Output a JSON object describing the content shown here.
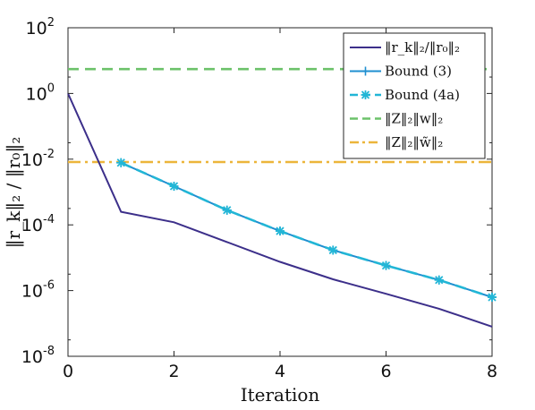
{
  "chart_data": {
    "type": "line",
    "xlabel": "Iteration",
    "ylabel": "‖r_k‖₂ / ‖r₀‖₂",
    "xlim": [
      0,
      8
    ],
    "ylim_log10": [
      -8,
      2
    ],
    "yscale": "log",
    "x_ticks": [
      "0",
      "2",
      "4",
      "6",
      "8"
    ],
    "y_ticks": [
      {
        "base": "10",
        "exp": "2"
      },
      {
        "base": "10",
        "exp": "0"
      },
      {
        "base": "10",
        "exp": "-2"
      },
      {
        "base": "10",
        "exp": "-4"
      },
      {
        "base": "10",
        "exp": "-6"
      },
      {
        "base": "10",
        "exp": "-8"
      }
    ],
    "grid": false,
    "legend_position": "top-right",
    "series": [
      {
        "name": "‖r_k‖₂/‖r₀‖₂",
        "color": "#3c2f8a",
        "style": "solid",
        "marker": "none",
        "x": [
          0,
          1,
          2,
          3,
          4,
          5,
          6,
          7,
          8
        ],
        "y": [
          1,
          0.00025,
          0.00012,
          3e-05,
          7.5e-06,
          2.2e-06,
          8e-07,
          2.8e-07,
          8e-08
        ]
      },
      {
        "name": "Bound (3)",
        "color": "#1f8fd0",
        "style": "solid",
        "marker": "plus",
        "x": [
          1,
          2,
          3,
          4,
          5,
          6,
          7,
          8
        ],
        "y": [
          0.0078,
          0.0015,
          0.00028,
          6.5e-05,
          1.7e-05,
          5.8e-06,
          2.1e-06,
          6.3e-07
        ]
      },
      {
        "name": "Bound (4a)",
        "color": "#22b6d6",
        "style": "dashed",
        "marker": "star",
        "x": [
          1,
          2,
          3,
          4,
          5,
          6,
          7,
          8
        ],
        "y": [
          0.0078,
          0.0015,
          0.00028,
          6.5e-05,
          1.7e-05,
          5.8e-06,
          2.1e-06,
          6.3e-07
        ]
      },
      {
        "name": "‖Z‖₂‖w‖₂",
        "color": "#6cc26a",
        "style": "dashed",
        "marker": "none",
        "x": [
          0,
          8
        ],
        "y": [
          5.5,
          5.5
        ]
      },
      {
        "name": "‖Z‖₂‖w̃‖₂",
        "color": "#ecb53a",
        "style": "dashdot",
        "marker": "none",
        "x": [
          0,
          8
        ],
        "y": [
          0.0082,
          0.0082
        ]
      }
    ]
  }
}
